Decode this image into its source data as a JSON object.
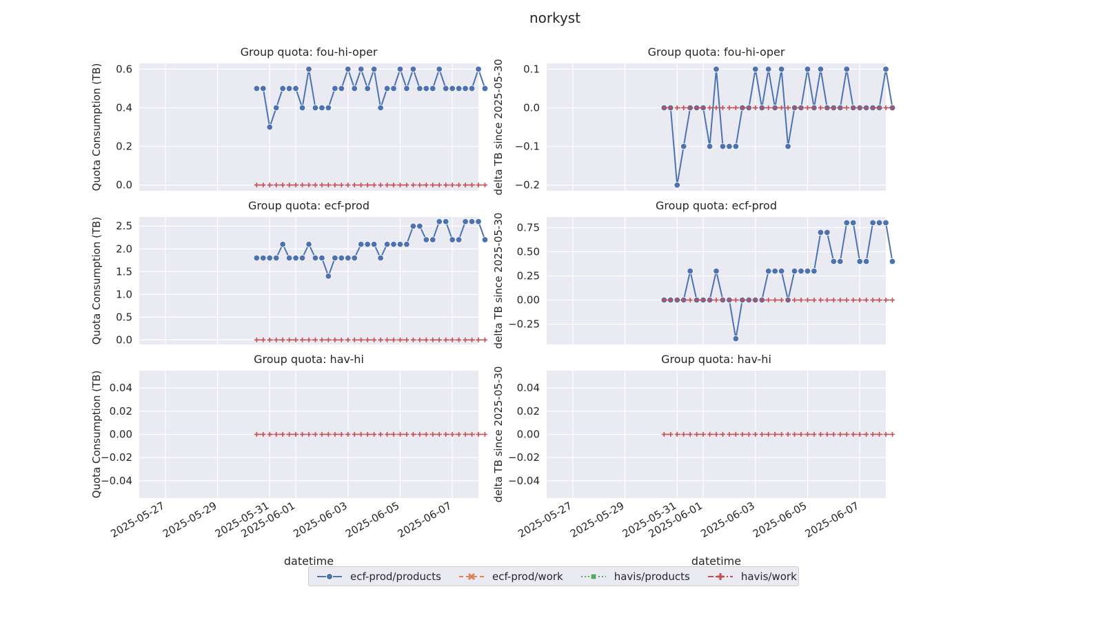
{
  "chart_data": {
    "type": "line",
    "suptitle": "norkyst",
    "xlabel": "datetime",
    "x_ticks": [
      "2025-05-27",
      "2025-05-29",
      "2025-05-31",
      "2025-06-01",
      "2025-06-03",
      "2025-06-05",
      "2025-06-07"
    ],
    "x_range": [
      "2025-05-26",
      "2025-06-08"
    ],
    "grid": true,
    "legend_position": "bottom-center",
    "series_styles": [
      {
        "name": "ecf-prod/products",
        "color": "#4c72b0",
        "marker": "circle",
        "dash": "solid"
      },
      {
        "name": "ecf-prod/work",
        "color": "#dd8452",
        "marker": "x",
        "dash": "dashed"
      },
      {
        "name": "havis/products",
        "color": "#55a868",
        "marker": "square",
        "dash": "dotted"
      },
      {
        "name": "havis/work",
        "color": "#c44e52",
        "marker": "plus",
        "dash": "dashdot"
      }
    ],
    "x": [
      "2025-05-30 12:00",
      "2025-05-30 18:00",
      "2025-05-31 00:00",
      "2025-05-31 06:00",
      "2025-05-31 12:00",
      "2025-05-31 18:00",
      "2025-06-01 00:00",
      "2025-06-01 06:00",
      "2025-06-01 12:00",
      "2025-06-01 18:00",
      "2025-06-02 00:00",
      "2025-06-02 06:00",
      "2025-06-02 12:00",
      "2025-06-02 18:00",
      "2025-06-03 00:00",
      "2025-06-03 06:00",
      "2025-06-03 12:00",
      "2025-06-03 18:00",
      "2025-06-04 00:00",
      "2025-06-04 06:00",
      "2025-06-04 12:00",
      "2025-06-04 18:00",
      "2025-06-05 00:00",
      "2025-06-05 06:00",
      "2025-06-05 12:00",
      "2025-06-05 18:00",
      "2025-06-06 00:00",
      "2025-06-06 06:00",
      "2025-06-06 12:00",
      "2025-06-06 18:00",
      "2025-06-07 00:00",
      "2025-06-07 06:00",
      "2025-06-07 12:00",
      "2025-06-07 18:00",
      "2025-06-08 00:00",
      "2025-06-08 06:00"
    ],
    "panels": [
      {
        "title": "Group quota: fou-hi-oper",
        "ylabel": "Quota Consumption (TB)",
        "ylim": [
          -0.03,
          0.63
        ],
        "y_ticks": [
          "0.0",
          "0.2",
          "0.4",
          "0.6"
        ],
        "series": [
          {
            "name": "ecf-prod/products",
            "values": [
              0.5,
              0.5,
              0.3,
              0.4,
              0.5,
              0.5,
              0.5,
              0.4,
              0.6,
              0.4,
              0.4,
              0.4,
              0.5,
              0.5,
              0.6,
              0.5,
              0.6,
              0.5,
              0.6,
              0.4,
              0.5,
              0.5,
              0.6,
              0.5,
              0.6,
              0.5,
              0.5,
              0.5,
              0.6,
              0.5,
              0.5,
              0.5,
              0.5,
              0.5,
              0.6,
              0.5
            ]
          },
          {
            "name": "havis/work",
            "values": [
              0,
              0,
              0,
              0,
              0,
              0,
              0,
              0,
              0,
              0,
              0,
              0,
              0,
              0,
              0,
              0,
              0,
              0,
              0,
              0,
              0,
              0,
              0,
              0,
              0,
              0,
              0,
              0,
              0,
              0,
              0,
              0,
              0,
              0,
              0,
              0
            ]
          }
        ]
      },
      {
        "title": "Group quota: fou-hi-oper",
        "ylabel": "delta TB since 2025-05-30",
        "ylim": [
          -0.215,
          0.115
        ],
        "y_ticks": [
          "−0.2",
          "−0.1",
          "0.0",
          "0.1"
        ],
        "series": [
          {
            "name": "ecf-prod/products",
            "values": [
              0,
              0,
              -0.2,
              -0.1,
              0,
              0,
              0,
              -0.1,
              0.1,
              -0.1,
              -0.1,
              -0.1,
              0,
              0,
              0.1,
              0,
              0.1,
              0,
              0.1,
              -0.1,
              0,
              0,
              0.1,
              0,
              0.1,
              0,
              0,
              0,
              0.1,
              0,
              0,
              0,
              0,
              0,
              0.1,
              0
            ]
          },
          {
            "name": "havis/work",
            "values": [
              0,
              0,
              0,
              0,
              0,
              0,
              0,
              0,
              0,
              0,
              0,
              0,
              0,
              0,
              0,
              0,
              0,
              0,
              0,
              0,
              0,
              0,
              0,
              0,
              0,
              0,
              0,
              0,
              0,
              0,
              0,
              0,
              0,
              0,
              0,
              0
            ]
          }
        ]
      },
      {
        "title": "Group quota: ecf-prod",
        "ylabel": "Quota Consumption (TB)",
        "ylim": [
          -0.1,
          2.7
        ],
        "y_ticks": [
          "0.0",
          "0.5",
          "1.0",
          "1.5",
          "2.0",
          "2.5"
        ],
        "series": [
          {
            "name": "ecf-prod/products",
            "values": [
              1.8,
              1.8,
              1.8,
              1.8,
              2.1,
              1.8,
              1.8,
              1.8,
              2.1,
              1.8,
              1.8,
              1.4,
              1.8,
              1.8,
              1.8,
              1.8,
              2.1,
              2.1,
              2.1,
              1.8,
              2.1,
              2.1,
              2.1,
              2.1,
              2.5,
              2.5,
              2.2,
              2.2,
              2.6,
              2.6,
              2.2,
              2.2,
              2.6,
              2.6,
              2.6,
              2.2
            ]
          },
          {
            "name": "havis/work",
            "values": [
              0,
              0,
              0,
              0,
              0,
              0,
              0,
              0,
              0,
              0,
              0,
              0,
              0,
              0,
              0,
              0,
              0,
              0,
              0,
              0,
              0,
              0,
              0,
              0,
              0,
              0,
              0,
              0,
              0,
              0,
              0,
              0,
              0,
              0,
              0,
              0
            ]
          }
        ]
      },
      {
        "title": "Group quota: ecf-prod",
        "ylabel": "delta TB since 2025-05-30",
        "ylim": [
          -0.46,
          0.86
        ],
        "y_ticks": [
          "−0.25",
          "0.00",
          "0.25",
          "0.50",
          "0.75"
        ],
        "series": [
          {
            "name": "ecf-prod/products",
            "values": [
              0,
              0,
              0,
              0,
              0.3,
              0,
              0,
              0,
              0.3,
              0,
              0,
              -0.4,
              0,
              0,
              0,
              0,
              0.3,
              0.3,
              0.3,
              0,
              0.3,
              0.3,
              0.3,
              0.3,
              0.7,
              0.7,
              0.4,
              0.4,
              0.8,
              0.8,
              0.4,
              0.4,
              0.8,
              0.8,
              0.8,
              0.4
            ]
          },
          {
            "name": "havis/work",
            "values": [
              0,
              0,
              0,
              0,
              0,
              0,
              0,
              0,
              0,
              0,
              0,
              0,
              0,
              0,
              0,
              0,
              0,
              0,
              0,
              0,
              0,
              0,
              0,
              0,
              0,
              0,
              0,
              0,
              0,
              0,
              0,
              0,
              0,
              0,
              0,
              0
            ]
          }
        ]
      },
      {
        "title": "Group quota: hav-hi",
        "ylabel": "Quota Consumption (TB)",
        "ylim": [
          -0.055,
          0.055
        ],
        "y_ticks": [
          "−0.04",
          "−0.02",
          "0.00",
          "0.02",
          "0.04"
        ],
        "series": [
          {
            "name": "havis/work",
            "values": [
              0,
              0,
              0,
              0,
              0,
              0,
              0,
              0,
              0,
              0,
              0,
              0,
              0,
              0,
              0,
              0,
              0,
              0,
              0,
              0,
              0,
              0,
              0,
              0,
              0,
              0,
              0,
              0,
              0,
              0,
              0,
              0,
              0,
              0,
              0,
              0
            ]
          }
        ]
      },
      {
        "title": "Group quota: hav-hi",
        "ylabel": "delta TB since 2025-05-30",
        "ylim": [
          -0.055,
          0.055
        ],
        "y_ticks": [
          "−0.04",
          "−0.02",
          "0.00",
          "0.02",
          "0.04"
        ],
        "series": [
          {
            "name": "havis/work",
            "values": [
              0,
              0,
              0,
              0,
              0,
              0,
              0,
              0,
              0,
              0,
              0,
              0,
              0,
              0,
              0,
              0,
              0,
              0,
              0,
              0,
              0,
              0,
              0,
              0,
              0,
              0,
              0,
              0,
              0,
              0,
              0,
              0,
              0,
              0,
              0,
              0
            ]
          }
        ]
      }
    ]
  }
}
